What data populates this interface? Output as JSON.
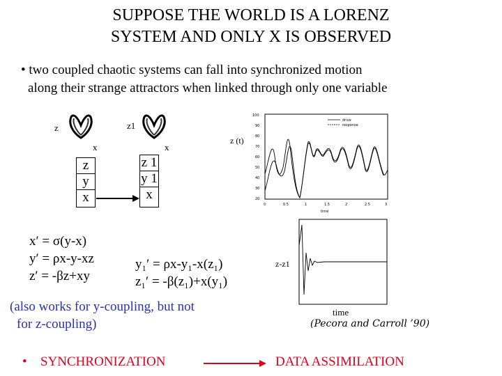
{
  "title": {
    "line1": "SUPPOSE THE WORLD IS A LORENZ",
    "line2": "SYSTEM AND ONLY  X  IS OBSERVED"
  },
  "bullet": {
    "marker": "•",
    "line1": "two coupled chaotic systems can fall into synchronized motion",
    "line2": "along their strange attractors when linked through only one variable"
  },
  "diagram": {
    "left_label_z": "z",
    "left_label_x": "x",
    "right_label_z": "z1",
    "right_label_x": "x",
    "left_cells": [
      "z",
      "y",
      "x"
    ],
    "right_cells": [
      "z 1",
      "y 1",
      "x"
    ]
  },
  "equations": {
    "left": [
      "x′ = σ(y-x)",
      "y′ = ρx-y-xz",
      "z′ = -βz+xy"
    ],
    "right": [
      "y₁′ = ρx-y₁-x(z₁)",
      "z₁′ = -β(z₁)+x(y₁)"
    ]
  },
  "note": {
    "line1": "(also works for y-coupling, but not",
    "line2": "for z-coupling)"
  },
  "plot_top": {
    "ylabel": "z (t)",
    "xlabel": "time",
    "yticks": [
      "100",
      "90",
      "80",
      "70",
      "60",
      "50",
      "40",
      "30",
      "20"
    ],
    "xticks": [
      "0",
      "0.5",
      "1",
      "1.5",
      "2",
      "2.5",
      "3"
    ],
    "legend": [
      "drive",
      "response"
    ]
  },
  "plot_bottom": {
    "ylabel": "z-z1",
    "xlabel": "time"
  },
  "citation": "(Pecora and Carroll ’90)",
  "footer": {
    "marker": "•",
    "left": "SYNCHRONIZATION",
    "right": "DATA ASSIMILATION"
  },
  "colors": {
    "blue_note": "#2b2fb8",
    "red_footer": "#e0001b"
  }
}
